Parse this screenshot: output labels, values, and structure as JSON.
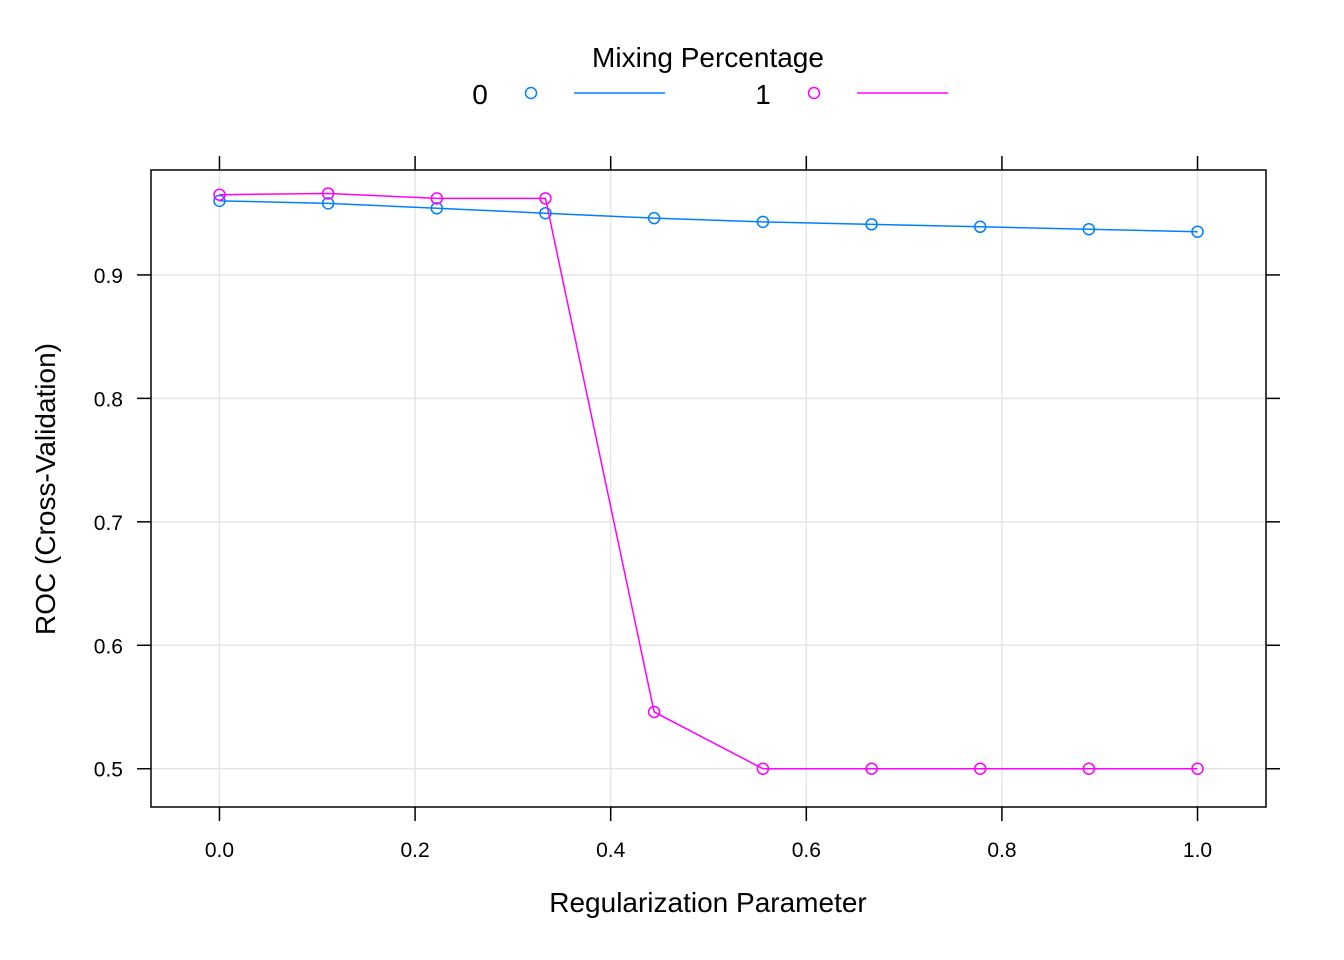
{
  "chart_data": {
    "type": "line",
    "title": "",
    "xlabel": "Regularization Parameter",
    "ylabel": "ROC (Cross-Validation)",
    "legend_title": "Mixing Percentage",
    "legend_position": "top",
    "grid": true,
    "xlim": [
      -0.07,
      1.07
    ],
    "ylim": [
      0.469,
      0.985
    ],
    "xticks": [
      0.0,
      0.2,
      0.4,
      0.6,
      0.8,
      1.0
    ],
    "xtick_labels": [
      "0.0",
      "0.2",
      "0.4",
      "0.6",
      "0.8",
      "1.0"
    ],
    "yticks": [
      0.5,
      0.6,
      0.7,
      0.8,
      0.9
    ],
    "ytick_labels": [
      "0.5",
      "0.6",
      "0.7",
      "0.8",
      "0.9"
    ],
    "x": [
      0.0,
      0.1111,
      0.2222,
      0.3333,
      0.4444,
      0.5556,
      0.6667,
      0.7778,
      0.8889,
      1.0
    ],
    "series": [
      {
        "name": "0",
        "color": "#0080ff",
        "values": [
          0.96,
          0.958,
          0.954,
          0.95,
          0.946,
          0.943,
          0.941,
          0.939,
          0.937,
          0.935
        ]
      },
      {
        "name": "1",
        "color": "#ff00ff",
        "values": [
          0.965,
          0.966,
          0.962,
          0.962,
          0.546,
          0.5,
          0.5,
          0.5,
          0.5,
          0.5
        ]
      }
    ]
  }
}
